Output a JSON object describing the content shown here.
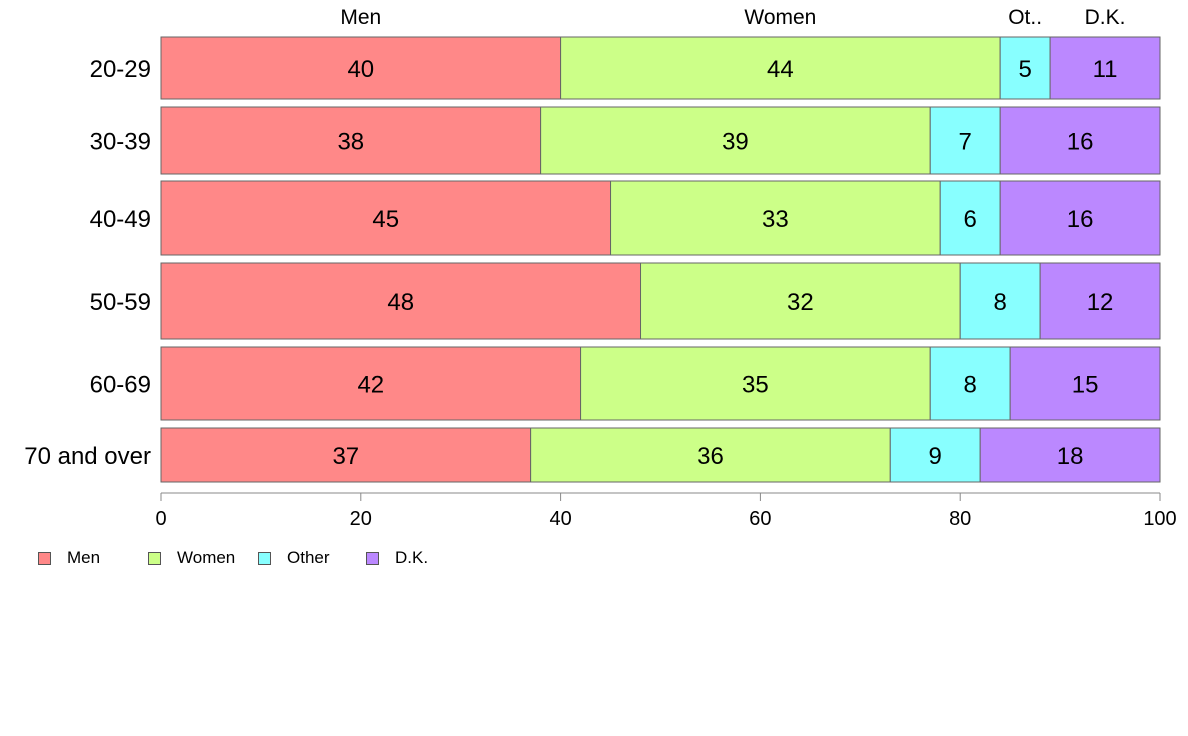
{
  "chart_data": {
    "type": "bar",
    "orientation": "horizontal",
    "stacked": true,
    "categories": [
      "20-29",
      "30-39",
      "40-49",
      "50-59",
      "60-69",
      "70 and over"
    ],
    "series": [
      {
        "name": "Men",
        "values": [
          40,
          38,
          45,
          48,
          42,
          37
        ],
        "color": "#ff8888"
      },
      {
        "name": "Women",
        "values": [
          44,
          39,
          33,
          32,
          35,
          36
        ],
        "color": "#ccff88"
      },
      {
        "name": "Other",
        "values": [
          5,
          7,
          6,
          8,
          8,
          9
        ],
        "color": "#88ffff"
      },
      {
        "name": "D.K.",
        "values": [
          11,
          16,
          16,
          12,
          15,
          18
        ],
        "color": "#bb88ff"
      }
    ],
    "bar_totals_note": "",
    "xlim": [
      0,
      100
    ],
    "x_ticks": [
      0,
      20,
      40,
      60,
      80,
      100
    ],
    "column_headers": [
      "Men",
      "Women",
      "Ot..",
      "D.K."
    ],
    "grid": false,
    "legend_placement": "bottom-left"
  },
  "legend": {
    "items": [
      {
        "label": "Men",
        "color": "#ff8888"
      },
      {
        "label": "Women",
        "color": "#ccff88"
      },
      {
        "label": "Other",
        "color": "#88ffff"
      },
      {
        "label": "D.K.",
        "color": "#bb88ff"
      }
    ]
  }
}
